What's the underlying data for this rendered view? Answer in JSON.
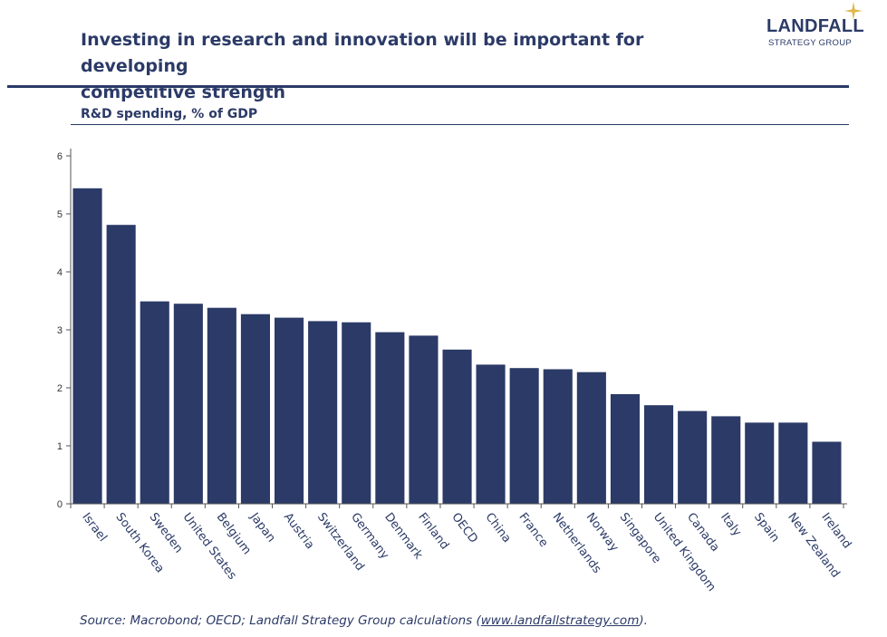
{
  "header": {
    "title_line1": "Investing in research and innovation will be important for developing",
    "title_line2": "competitive strength",
    "logo_name": "LANDFALL",
    "logo_sub": "STRATEGY GROUP",
    "logo_star_color": "#e0b84a"
  },
  "chart_subtitle": "R&D spending, % of GDP",
  "source": {
    "prefix": "Source: Macrobond; OECD; Landfall Strategy Group calculations (",
    "link": "www.landfallstrategy.com",
    "suffix": ")."
  },
  "colors": {
    "bar": "#2b3a67",
    "text": "#2b3a67",
    "axis": "#555555"
  },
  "chart_data": {
    "type": "bar",
    "categories": [
      "Israel",
      "South Korea",
      "Sweden",
      "United States",
      "Belgium",
      "Japan",
      "Austria",
      "Switzerland",
      "Germany",
      "Denmark",
      "Finland",
      "OECD",
      "China",
      "France",
      "Netherlands",
      "Norway",
      "Singapore",
      "United Kingdom",
      "Canada",
      "Italy",
      "Spain",
      "New Zealand",
      "Ireland"
    ],
    "values": [
      5.44,
      4.81,
      3.49,
      3.45,
      3.38,
      3.27,
      3.21,
      3.15,
      3.13,
      2.96,
      2.9,
      2.66,
      2.4,
      2.34,
      2.32,
      2.27,
      1.89,
      1.7,
      1.6,
      1.51,
      1.4,
      1.4,
      1.07
    ],
    "ylim": [
      0,
      6
    ],
    "yticks": [
      0,
      1,
      2,
      3,
      4,
      5,
      6
    ],
    "title": "R&D spending, % of GDP",
    "xlabel": "",
    "ylabel": "",
    "grid": false,
    "legend": "none"
  }
}
